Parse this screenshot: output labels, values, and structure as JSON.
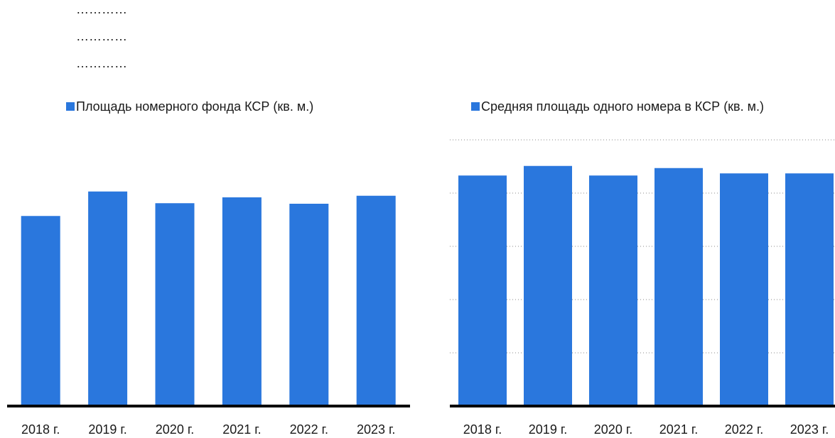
{
  "header_lines": [
    "…………",
    "…………",
    "…………"
  ],
  "chart_data": [
    {
      "type": "bar",
      "categories": [
        "2018 г.",
        "2019 г.",
        "2020 г.",
        "2021 г.",
        "2022 г.",
        "2023 г."
      ],
      "series": [
        {
          "name": "Площадь номерного фонда КСР (кв. м.)",
          "color": "#2a77dd",
          "values": [
            3.57,
            4.03,
            3.81,
            3.92,
            3.8,
            3.95
          ]
        }
      ],
      "ylim": [
        0,
        5
      ],
      "grid": false
    },
    {
      "type": "bar",
      "categories": [
        "2018 г.",
        "2019 г.",
        "2020 г.",
        "2021 г.",
        "2022 г.",
        "2023 г."
      ],
      "series": [
        {
          "name": "Средняя площадь одного номера в КСР (кв. м.)",
          "color": "#2a77dd",
          "values": [
            4.33,
            4.51,
            4.33,
            4.47,
            4.37,
            4.37
          ]
        }
      ],
      "ylim": [
        0,
        5
      ],
      "yticks": [
        1,
        2,
        3,
        4,
        5
      ],
      "grid": true
    }
  ]
}
